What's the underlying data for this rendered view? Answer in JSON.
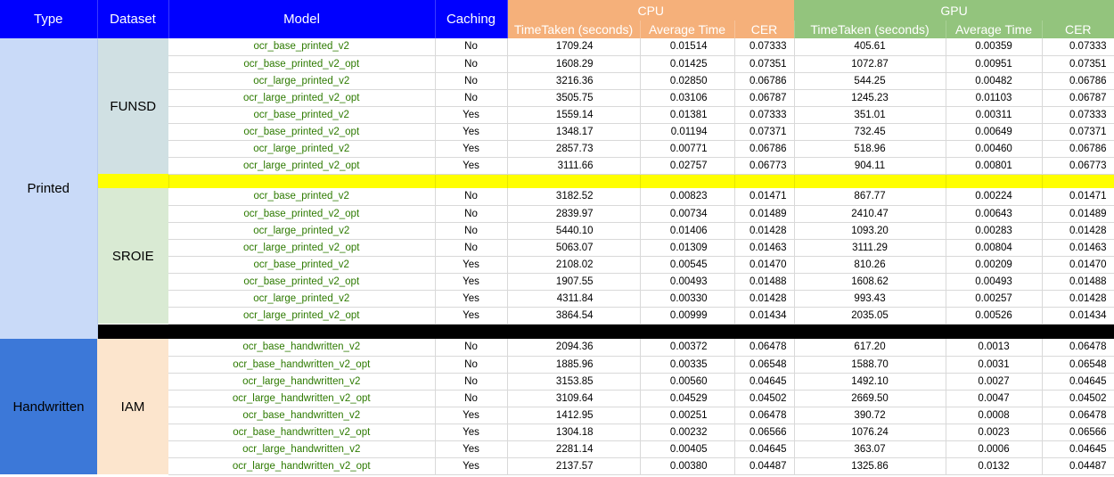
{
  "headers": {
    "type": "Type",
    "dataset": "Dataset",
    "model": "Model",
    "caching": "Caching",
    "cpu": "CPU",
    "gpu": "GPU",
    "cpu_time": "TimeTaken (seconds)",
    "cpu_avg": "Average Time",
    "cpu_cer": "CER",
    "gpu_time": "TimeTaken (seconds)",
    "gpu_avg": "Average Time",
    "gpu_cer": "CER"
  },
  "types": {
    "printed": "Printed",
    "handwritten": "Handwritten"
  },
  "datasets": {
    "funsd": "FUNSD",
    "sroie": "SROIE",
    "iam": "IAM"
  },
  "funsd_rows": [
    [
      "ocr_base_printed_v2",
      "No",
      "1709.24",
      "0.01514",
      "0.07333",
      "405.61",
      "0.00359",
      "0.07333"
    ],
    [
      "ocr_base_printed_v2_opt",
      "No",
      "1608.29",
      "0.01425",
      "0.07351",
      "1072.87",
      "0.00951",
      "0.07351"
    ],
    [
      "ocr_large_printed_v2",
      "No",
      "3216.36",
      "0.02850",
      "0.06786",
      "544.25",
      "0.00482",
      "0.06786"
    ],
    [
      "ocr_large_printed_v2_opt",
      "No",
      "3505.75",
      "0.03106",
      "0.06787",
      "1245.23",
      "0.01103",
      "0.06787"
    ],
    [
      "ocr_base_printed_v2",
      "Yes",
      "1559.14",
      "0.01381",
      "0.07333",
      "351.01",
      "0.00311",
      "0.07333"
    ],
    [
      "ocr_base_printed_v2_opt",
      "Yes",
      "1348.17",
      "0.01194",
      "0.07371",
      "732.45",
      "0.00649",
      "0.07371"
    ],
    [
      "ocr_large_printed_v2",
      "Yes",
      "2857.73",
      "0.00771",
      "0.06786",
      "518.96",
      "0.00460",
      "0.06786"
    ],
    [
      "ocr_large_printed_v2_opt",
      "Yes",
      "3111.66",
      "0.02757",
      "0.06773",
      "904.11",
      "0.00801",
      "0.06773"
    ]
  ],
  "sroie_rows": [
    [
      "ocr_base_printed_v2",
      "No",
      "3182.52",
      "0.00823",
      "0.01471",
      "867.77",
      "0.00224",
      "0.01471"
    ],
    [
      "ocr_base_printed_v2_opt",
      "No",
      "2839.97",
      "0.00734",
      "0.01489",
      "2410.47",
      "0.00643",
      "0.01489"
    ],
    [
      "ocr_large_printed_v2",
      "No",
      "5440.10",
      "0.01406",
      "0.01428",
      "1093.20",
      "0.00283",
      "0.01428"
    ],
    [
      "ocr_large_printed_v2_opt",
      "No",
      "5063.07",
      "0.01309",
      "0.01463",
      "3111.29",
      "0.00804",
      "0.01463"
    ],
    [
      "ocr_base_printed_v2",
      "Yes",
      "2108.02",
      "0.00545",
      "0.01470",
      "810.26",
      "0.00209",
      "0.01470"
    ],
    [
      "ocr_base_printed_v2_opt",
      "Yes",
      "1907.55",
      "0.00493",
      "0.01488",
      "1608.62",
      "0.00493",
      "0.01488"
    ],
    [
      "ocr_large_printed_v2",
      "Yes",
      "4311.84",
      "0.00330",
      "0.01428",
      "993.43",
      "0.00257",
      "0.01428"
    ],
    [
      "ocr_large_printed_v2_opt",
      "Yes",
      "3864.54",
      "0.00999",
      "0.01434",
      "2035.05",
      "0.00526",
      "0.01434"
    ]
  ],
  "iam_rows": [
    [
      "ocr_base_handwritten_v2",
      "No",
      "2094.36",
      "0.00372",
      "0.06478",
      "617.20",
      "0.0013",
      "0.06478"
    ],
    [
      "ocr_base_handwritten_v2_opt",
      "No",
      "1885.96",
      "0.00335",
      "0.06548",
      "1588.70",
      "0.0031",
      "0.06548"
    ],
    [
      "ocr_large_handwritten_v2",
      "No",
      "3153.85",
      "0.00560",
      "0.04645",
      "1492.10",
      "0.0027",
      "0.04645"
    ],
    [
      "ocr_large_handwritten_v2_opt",
      "No",
      "3109.64",
      "0.04529",
      "0.04502",
      "2669.50",
      "0.0047",
      "0.04502"
    ],
    [
      "ocr_base_handwritten_v2",
      "Yes",
      "1412.95",
      "0.00251",
      "0.06478",
      "390.72",
      "0.0008",
      "0.06478"
    ],
    [
      "ocr_base_handwritten_v2_opt",
      "Yes",
      "1304.18",
      "0.00232",
      "0.06566",
      "1076.24",
      "0.0023",
      "0.06566"
    ],
    [
      "ocr_large_handwritten_v2",
      "Yes",
      "2281.14",
      "0.00405",
      "0.04645",
      "363.07",
      "0.0006",
      "0.04645"
    ],
    [
      "ocr_large_handwritten_v2_opt",
      "Yes",
      "2137.57",
      "0.00380",
      "0.04487",
      "1325.86",
      "0.0132",
      "0.04487"
    ]
  ],
  "colors": {
    "header_blue": "#0000ff",
    "cpu_orange": "#f5b07a",
    "gpu_green": "#93c47d",
    "model_text_green": "#2d7a00",
    "printed_bg": "#c9daf8",
    "handwritten_bg": "#3c78d8",
    "funsd_bg": "#d0e0e3",
    "sroie_bg": "#d9ead3",
    "iam_bg": "#fce5cd",
    "separator_yellow": "#ffff00",
    "separator_black": "#000000"
  }
}
